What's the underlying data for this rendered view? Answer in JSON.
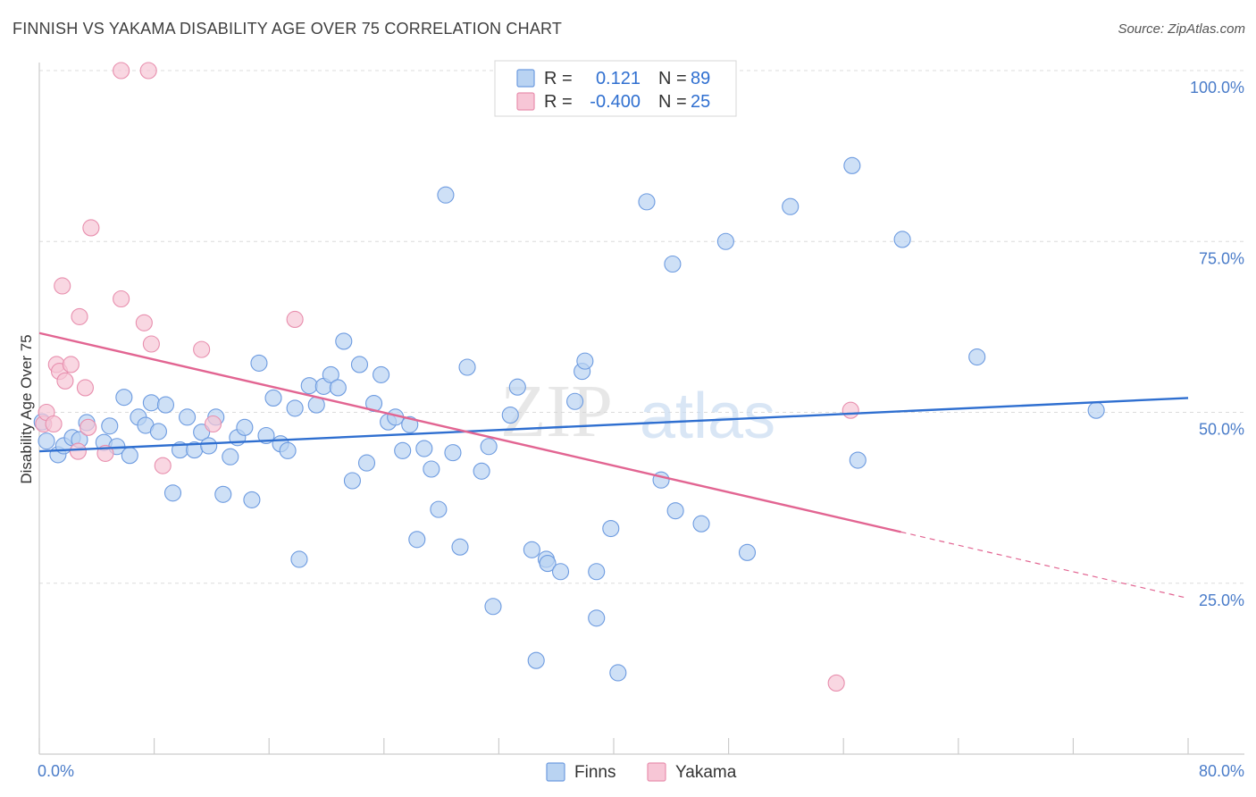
{
  "header": {
    "title": "FINNISH VS YAKAMA DISABILITY AGE OVER 75 CORRELATION CHART",
    "source": "Source: ZipAtlas.com"
  },
  "watermark": {
    "zip": "ZIP",
    "atlas": "atlas"
  },
  "colors": {
    "finns_fill": "#b9d3f2",
    "finns_stroke": "#6d9be0",
    "finns_line": "#2f6fd0",
    "yakama_fill": "#f7c6d6",
    "yakama_stroke": "#e88fae",
    "yakama_line": "#e26592",
    "grid": "#dcdcdc",
    "axis": "#cccccc",
    "tick_label": "#4a7cc9"
  },
  "chart_data": {
    "type": "scatter",
    "title": "FINNISH VS YAKAMA DISABILITY AGE OVER 75 CORRELATION CHART",
    "xlabel": "",
    "ylabel": "Disability Age Over 75",
    "xlim": [
      0,
      80
    ],
    "ylim": [
      0,
      105
    ],
    "x_tick_labels": [
      "0.0%",
      "80.0%"
    ],
    "y_ticks": [
      25,
      50,
      75,
      100
    ],
    "y_tick_labels": [
      "25.0%",
      "50.0%",
      "75.0%",
      "100.0%"
    ],
    "grid": true,
    "legend": {
      "placement": "top-center",
      "entries": [
        {
          "r_label": "R =",
          "r_value": "0.121",
          "n_label": "N =",
          "n_value": "89"
        },
        {
          "r_label": "R =",
          "r_value": "-0.400",
          "n_label": "N =",
          "n_value": "25"
        }
      ]
    },
    "bottom_legend": [
      "Finns",
      "Yakama"
    ],
    "series": [
      {
        "name": "Finns",
        "r": 0.121,
        "n": 89,
        "trend": {
          "x": [
            0,
            80
          ],
          "y": [
            44.3,
            52.1
          ],
          "dashed_from": null
        },
        "points": [
          [
            0.5,
            45.8
          ],
          [
            1.3,
            43.8
          ],
          [
            1.7,
            45.1
          ],
          [
            2.3,
            46.3
          ],
          [
            2.8,
            46.0
          ],
          [
            3.3,
            48.5
          ],
          [
            4.5,
            45.6
          ],
          [
            4.9,
            48.0
          ],
          [
            5.4,
            45.0
          ],
          [
            6.3,
            43.7
          ],
          [
            5.9,
            52.2
          ],
          [
            6.9,
            49.3
          ],
          [
            7.4,
            48.1
          ],
          [
            7.8,
            51.4
          ],
          [
            8.3,
            47.2
          ],
          [
            8.8,
            51.1
          ],
          [
            9.3,
            38.2
          ],
          [
            9.8,
            44.5
          ],
          [
            10.3,
            49.3
          ],
          [
            10.8,
            44.5
          ],
          [
            11.3,
            47.1
          ],
          [
            11.8,
            45.1
          ],
          [
            12.3,
            49.3
          ],
          [
            12.8,
            38.0
          ],
          [
            13.3,
            43.5
          ],
          [
            13.8,
            46.3
          ],
          [
            14.3,
            47.8
          ],
          [
            14.8,
            37.2
          ],
          [
            15.3,
            57.2
          ],
          [
            15.8,
            46.6
          ],
          [
            16.3,
            52.1
          ],
          [
            16.8,
            45.4
          ],
          [
            17.3,
            44.4
          ],
          [
            17.8,
            50.6
          ],
          [
            18.1,
            28.5
          ],
          [
            18.8,
            53.9
          ],
          [
            19.3,
            51.1
          ],
          [
            19.8,
            53.8
          ],
          [
            20.3,
            55.5
          ],
          [
            20.8,
            53.6
          ],
          [
            21.2,
            60.4
          ],
          [
            21.8,
            40.0
          ],
          [
            22.3,
            57.0
          ],
          [
            22.8,
            42.6
          ],
          [
            23.3,
            51.3
          ],
          [
            23.8,
            55.5
          ],
          [
            24.3,
            48.6
          ],
          [
            24.8,
            49.3
          ],
          [
            25.3,
            44.4
          ],
          [
            25.8,
            48.2
          ],
          [
            26.3,
            31.4
          ],
          [
            26.8,
            44.7
          ],
          [
            27.3,
            41.7
          ],
          [
            27.8,
            35.8
          ],
          [
            28.3,
            81.8
          ],
          [
            28.8,
            44.1
          ],
          [
            29.3,
            30.3
          ],
          [
            29.8,
            56.6
          ],
          [
            30.8,
            41.4
          ],
          [
            31.3,
            45.0
          ],
          [
            31.6,
            21.6
          ],
          [
            32.8,
            49.6
          ],
          [
            33.3,
            53.7
          ],
          [
            34.3,
            29.9
          ],
          [
            34.6,
            13.7
          ],
          [
            35.3,
            28.5
          ],
          [
            35.4,
            27.9
          ],
          [
            36.3,
            26.7
          ],
          [
            37.3,
            51.6
          ],
          [
            37.8,
            56.0
          ],
          [
            38.0,
            57.5
          ],
          [
            38.8,
            26.7
          ],
          [
            38.8,
            19.9
          ],
          [
            39.8,
            33.0
          ],
          [
            40.3,
            11.9
          ],
          [
            42.3,
            80.8
          ],
          [
            43.3,
            40.1
          ],
          [
            44.1,
            71.7
          ],
          [
            44.3,
            35.6
          ],
          [
            46.1,
            33.7
          ],
          [
            47.8,
            75.0
          ],
          [
            49.3,
            29.5
          ],
          [
            52.3,
            80.1
          ],
          [
            56.6,
            86.1
          ],
          [
            57.0,
            43.0
          ],
          [
            60.1,
            75.3
          ],
          [
            65.3,
            58.1
          ],
          [
            73.6,
            50.3
          ],
          [
            0.2,
            48.6
          ]
        ]
      },
      {
        "name": "Yakama",
        "r": -0.4,
        "n": 25,
        "trend": {
          "x": [
            0,
            60,
            80
          ],
          "y": [
            61.6,
            32.5,
            22.8
          ],
          "dashed_from": 60
        },
        "points": [
          [
            0.3,
            48.3
          ],
          [
            0.5,
            50.0
          ],
          [
            1.0,
            48.3
          ],
          [
            1.2,
            57.0
          ],
          [
            1.4,
            56.0
          ],
          [
            1.6,
            68.5
          ],
          [
            1.8,
            54.6
          ],
          [
            2.2,
            57.0
          ],
          [
            2.7,
            44.3
          ],
          [
            2.8,
            64.0
          ],
          [
            3.2,
            53.6
          ],
          [
            3.4,
            47.8
          ],
          [
            3.6,
            77.0
          ],
          [
            4.6,
            44.0
          ],
          [
            5.7,
            100.0
          ],
          [
            5.7,
            66.6
          ],
          [
            7.3,
            63.1
          ],
          [
            7.6,
            100.0
          ],
          [
            7.8,
            60.0
          ],
          [
            8.6,
            42.2
          ],
          [
            11.3,
            59.2
          ],
          [
            12.1,
            48.3
          ],
          [
            17.8,
            63.6
          ],
          [
            55.5,
            10.4
          ],
          [
            56.5,
            50.3
          ]
        ]
      }
    ]
  }
}
